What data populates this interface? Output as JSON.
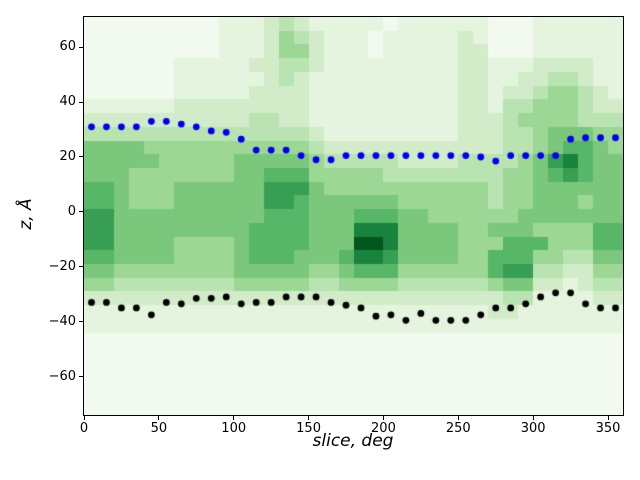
{
  "figure": {
    "background": "#ffffff",
    "frame_color": "#000000"
  },
  "chart_data": {
    "type": "heatmap",
    "title": "",
    "xlabel": "slice, deg",
    "ylabel": "z, Å",
    "xlim": [
      0,
      360
    ],
    "ylim": [
      -74,
      71
    ],
    "grid": false,
    "legend": "none",
    "x_ticks": {
      "values": [
        0,
        50,
        100,
        150,
        200,
        250,
        300,
        350
      ],
      "labels": [
        "0",
        "50",
        "100",
        "150",
        "200",
        "250",
        "300",
        "350"
      ]
    },
    "y_ticks": {
      "values": [
        60,
        40,
        20,
        0,
        -20,
        -40,
        -60
      ],
      "labels": [
        "60",
        "40",
        "20",
        "0",
        "−20",
        "−40",
        "−60"
      ]
    },
    "colormap": {
      "name": "Greens",
      "levels": [
        "#f2f9ef",
        "#e4f4de",
        "#d2ecca",
        "#b9e3b1",
        "#9cd795",
        "#7bc87d",
        "#58b668",
        "#379e53",
        "#19833d",
        "#02571f"
      ]
    },
    "heatmap": {
      "n_cols": 36,
      "n_rows": 29,
      "x_bin_deg": 10,
      "z_bin_ang": 5,
      "z_top": 71,
      "intensity_scale": "0=lightest 9=darkest",
      "rows": [
        "000000000111232111110111111000111111",
        "000000000111243211101111121000111111",
        "000000000111244211101111122000111111",
        "000000111112233211111111122111222211",
        "000000111111232111111111122112233211",
        "000000111112222111111111122122344321",
        "111111222222222111111111122133444322",
        "222222222223322111111111122234444333",
        "333333333333333211111111122233455544",
        "555544444444444322222222222233456654",
        "555554444455555433333222233334578655",
        "555444444455666444443333333344567655",
        "665444555555777544444444444344555555",
        "665444555555776555555444444344555455",
        "775555555555666555666554444445555555",
        "775555555556666555888555544555444466",
        "775555444456666555998555544466644466",
        "665555444456665556887555544666443355",
        "554444444455555445666444444677332244",
        "443333333344444334444333333455221233",
        "222222222222222222222222222233111122",
        "111111111111111111111111111221111111",
        "111111111111111111111111111111111111",
        "000000000000000000000000000000000000",
        "000000000000000000000000000000000000",
        "000000000000000000000000000000000000",
        "000000000000000000000000000000000000",
        "000000000000000000000000000000000000",
        "000000000000000000000000000000000000"
      ]
    },
    "series": [
      {
        "name": "upper boundary dots",
        "marker": "dot",
        "color": "#0000ee",
        "x": [
          5,
          15,
          25,
          35,
          45,
          55,
          65,
          75,
          85,
          95,
          105,
          115,
          125,
          135,
          145,
          155,
          165,
          175,
          185,
          195,
          205,
          215,
          225,
          235,
          245,
          255,
          265,
          275,
          285,
          295,
          305,
          315,
          325,
          335,
          345,
          355
        ],
        "z": [
          31,
          31,
          31,
          31,
          33,
          33,
          32,
          31,
          29.5,
          29,
          26.5,
          22.5,
          22.5,
          22.5,
          20.5,
          19,
          19,
          20.5,
          20.5,
          20.5,
          20.5,
          20.5,
          20.5,
          20.5,
          20.5,
          20.5,
          20,
          18.5,
          20.5,
          20.5,
          20.5,
          20.5,
          26.5,
          27,
          27,
          27
        ]
      },
      {
        "name": "lower boundary dots",
        "marker": "dot",
        "color": "#000000",
        "x": [
          5,
          15,
          25,
          35,
          45,
          55,
          65,
          75,
          85,
          95,
          105,
          115,
          125,
          135,
          145,
          155,
          165,
          175,
          185,
          195,
          205,
          215,
          225,
          235,
          245,
          255,
          265,
          275,
          285,
          295,
          305,
          315,
          325,
          335,
          345,
          355
        ],
        "z": [
          -33,
          -33,
          -35,
          -35,
          -37.5,
          -33,
          -33.5,
          -31.5,
          -31.5,
          -31,
          -33.5,
          -33,
          -33,
          -31,
          -31,
          -31,
          -33,
          -34,
          -35,
          -38,
          -37.5,
          -39.5,
          -37,
          -39.5,
          -39.5,
          -39.5,
          -37.5,
          -35,
          -35,
          -33.5,
          -31,
          -29.5,
          -29.5,
          -33.5,
          -35,
          -35
        ]
      }
    ]
  }
}
